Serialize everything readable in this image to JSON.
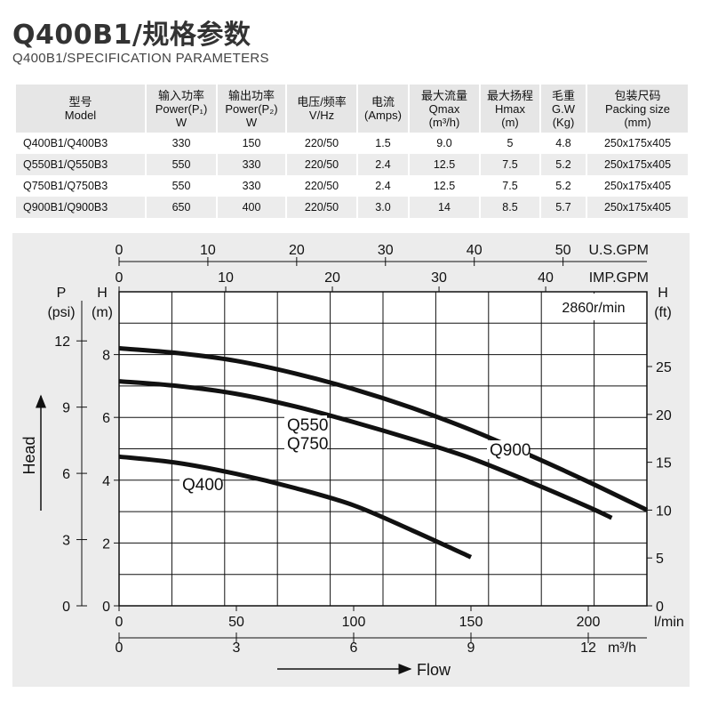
{
  "header": {
    "title": "Q400B1/规格参数",
    "subtitle": "Q400B1/SPECIFICATION PARAMETERS"
  },
  "spec_table": {
    "columns": [
      [
        "型号",
        "Model"
      ],
      [
        "输入功率",
        "Power(P₁)",
        "W"
      ],
      [
        "输出功率",
        "Power(P₂)",
        "W"
      ],
      [
        "电压/频率",
        "V/Hz"
      ],
      [
        "电流",
        "(Amps)"
      ],
      [
        "最大流量",
        "Qmax",
        "(m³/h)"
      ],
      [
        "最大扬程",
        "Hmax",
        "(m)"
      ],
      [
        "毛重",
        "G.W",
        "(Kg)"
      ],
      [
        "包装尺码",
        "Packing size",
        "(mm)"
      ]
    ],
    "rows": [
      [
        "Q400B1/Q400B3",
        "330",
        "150",
        "220/50",
        "1.5",
        "9.0",
        "5",
        "4.8",
        "250x175x405"
      ],
      [
        "Q550B1/Q550B3",
        "550",
        "330",
        "220/50",
        "2.4",
        "12.5",
        "7.5",
        "5.2",
        "250x175x405"
      ],
      [
        "Q750B1/Q750B3",
        "550",
        "330",
        "220/50",
        "2.4",
        "12.5",
        "7.5",
        "5.2",
        "250x175x405"
      ],
      [
        "Q900B1/Q900B3",
        "650",
        "400",
        "220/50",
        "3.0",
        "14",
        "8.5",
        "5.7",
        "250x175x405"
      ]
    ]
  },
  "chart_data": {
    "type": "line",
    "title": "",
    "speed_label": "2860r/min",
    "x_primary": {
      "label": "l/min",
      "ticks": [
        0,
        50,
        100,
        150,
        200
      ],
      "range": [
        0,
        225
      ]
    },
    "x_m3h": {
      "label": "m³/h",
      "ticks": [
        0,
        3,
        6,
        9,
        12
      ]
    },
    "x_usgpm": {
      "label": "U.S.GPM",
      "ticks": [
        0,
        10,
        20,
        30,
        40,
        50
      ]
    },
    "x_impgpm": {
      "label": "IMP.GPM",
      "ticks": [
        0,
        10,
        20,
        30,
        40
      ]
    },
    "y_primary": {
      "label": "H",
      "unit": "(m)",
      "ticks": [
        0,
        2,
        4,
        6,
        8
      ],
      "range": [
        0,
        10
      ]
    },
    "y_psi": {
      "label": "P",
      "unit": "(psi)",
      "ticks": [
        0,
        3,
        6,
        9,
        12
      ]
    },
    "y_ft": {
      "label": "H",
      "unit": "(ft)",
      "ticks": [
        0,
        5,
        10,
        15,
        20,
        25
      ]
    },
    "axis_titles": {
      "head": "Head",
      "flow": "Flow"
    },
    "grid": true,
    "series": [
      {
        "name": "Q400",
        "x": [
          0,
          25,
          50,
          75,
          100,
          125,
          150
        ],
        "y": [
          4.75,
          4.55,
          4.2,
          3.75,
          3.2,
          2.4,
          1.55
        ]
      },
      {
        "name": "Q550 Q750",
        "x": [
          0,
          25,
          50,
          75,
          100,
          125,
          150,
          175,
          200,
          210
        ],
        "y": [
          7.15,
          7.0,
          6.75,
          6.35,
          5.85,
          5.3,
          4.7,
          3.95,
          3.15,
          2.8
        ]
      },
      {
        "name": "Q900",
        "x": [
          0,
          25,
          50,
          75,
          100,
          125,
          150,
          175,
          200,
          225
        ],
        "y": [
          8.2,
          8.05,
          7.8,
          7.4,
          6.9,
          6.3,
          5.6,
          4.8,
          3.95,
          3.05
        ]
      }
    ],
    "curve_labels": {
      "q400": "Q400",
      "q550": "Q550",
      "q750": "Q750",
      "q900": "Q900"
    }
  }
}
